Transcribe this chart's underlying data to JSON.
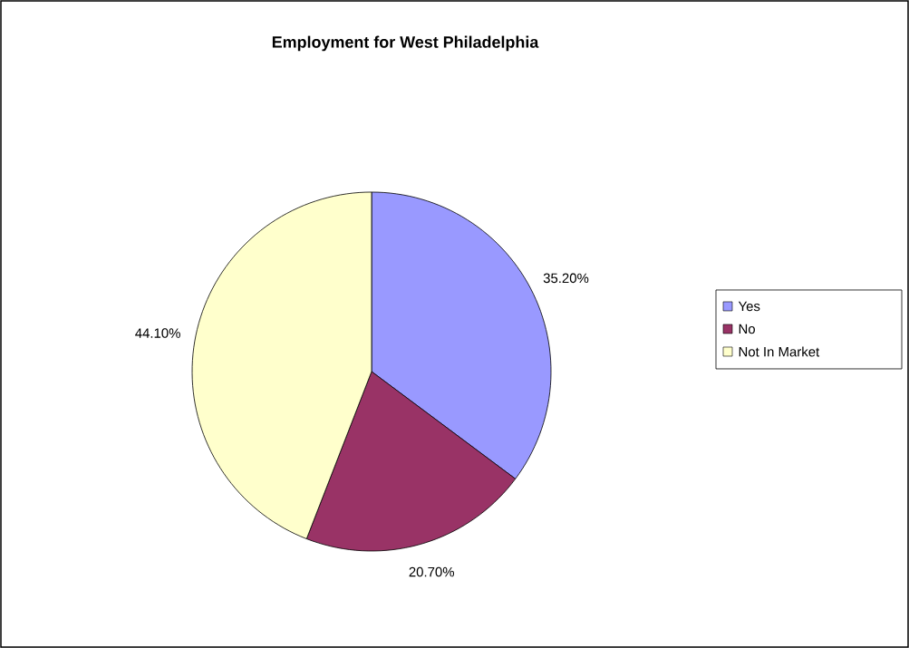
{
  "chart_data": {
    "type": "pie",
    "title": "Employment for West Philadelphia",
    "categories": [
      "Yes",
      "No",
      "Not In Market"
    ],
    "values": [
      35.2,
      20.7,
      44.1
    ],
    "value_labels": [
      "35.20%",
      "20.70%",
      "44.10%"
    ],
    "colors": [
      "#9999ff",
      "#993366",
      "#ffffcc"
    ],
    "legend": "right"
  }
}
